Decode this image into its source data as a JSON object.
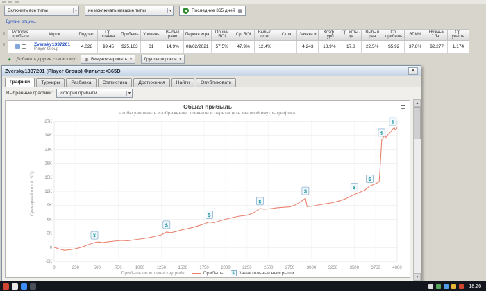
{
  "icons": {
    "dropdown": "▾",
    "back": "◀",
    "calendar": "▦",
    "plus": "+",
    "close": "✕",
    "menu": "≡",
    "up": "▲",
    "down": "▼",
    "grid": "⊞",
    "rows": "≡"
  },
  "toolbar": {
    "include_select": "Включить все типы",
    "exclude_select": "не исключать никакие типы",
    "date_filter": "Последние 365 дней",
    "other_options": "Другие опции..."
  },
  "table": {
    "columns": [
      "История прибыли",
      "Игрок",
      "Подсчет",
      "Ср. ставка",
      "Прибыль",
      "Уровень",
      "Выбыл рано",
      "Первая игра",
      "Общий ROI",
      "Ср. ROI",
      "Выбыл позд",
      "Стра",
      "Заявки и",
      "Коэф. турб",
      "Ср. игры / де",
      "Выбыл ран",
      "Ср. прибыль",
      "ЭПИ%",
      "Нужный бэ",
      "Ср. участн"
    ],
    "row": {
      "player": "Zversky1337201",
      "player_sub": "Player Group",
      "values": [
        "4,028",
        "$9.45",
        "$25,163",
        "81",
        "14.9%",
        "08/02/2021",
        "57.5%",
        "47.9%",
        "12.4%",
        "",
        "4,243",
        "18.9%",
        "17.8",
        "22.5%",
        "$5.92",
        "37.8%",
        "$2,277",
        "1,174"
      ]
    },
    "add_stats": "Добавить другие статистику",
    "visualize_button": "Визуализировать",
    "player_groups_button": "Группы игроков"
  },
  "popup": {
    "title": "Zversky1337201 (Player Group) Фильтр:<365D",
    "tabs": [
      {
        "label": "Графики",
        "active": true
      },
      {
        "label": "Турниры",
        "active": false
      },
      {
        "label": "Разбивка",
        "active": false
      },
      {
        "label": "Статистика",
        "active": false
      },
      {
        "label": "Достижения",
        "active": false
      },
      {
        "label": "Найти",
        "active": false
      },
      {
        "label": "Опубликовать",
        "active": false
      }
    ],
    "selected_graphs_label": "Выбранные графики:",
    "graph_select": "История прибыли"
  },
  "chart_data": {
    "type": "line",
    "title": "Общая прибыль",
    "subtitle": "Чтобы увеличить изображение, кликните и перетащите мышкой внутрь графика.",
    "ylabel": "Суммарный итог (USD)",
    "xlabel": "Прибыль по количеству рейк",
    "legend": [
      "Прибыль",
      "Значительные выигрыши"
    ],
    "xlim": [
      0,
      4000
    ],
    "ylim": [
      -3000,
      27000
    ],
    "x_ticks": [
      0,
      250,
      500,
      750,
      1000,
      1250,
      1500,
      1750,
      2000,
      2250,
      2500,
      2750,
      3000,
      3250,
      3500,
      3750,
      4000
    ],
    "y_ticks": [
      -3000,
      0,
      3000,
      6000,
      9000,
      12000,
      15000,
      18000,
      21000,
      24000,
      27000
    ],
    "y_tick_labels": [
      "-3K",
      "0",
      "3K",
      "6K",
      "9K",
      "12K",
      "15K",
      "18K",
      "21K",
      "24K",
      "27K"
    ],
    "series": [
      {
        "name": "Прибыль",
        "color": "#e8826e",
        "points": [
          [
            0,
            0
          ],
          [
            60,
            -400
          ],
          [
            120,
            -650
          ],
          [
            180,
            -550
          ],
          [
            240,
            -350
          ],
          [
            300,
            -100
          ],
          [
            360,
            300
          ],
          [
            420,
            700
          ],
          [
            470,
            1000
          ],
          [
            520,
            1150
          ],
          [
            560,
            1000
          ],
          [
            620,
            1150
          ],
          [
            700,
            1300
          ],
          [
            780,
            1450
          ],
          [
            860,
            1400
          ],
          [
            940,
            1600
          ],
          [
            1000,
            1750
          ],
          [
            1060,
            1900
          ],
          [
            1120,
            2100
          ],
          [
            1180,
            2350
          ],
          [
            1250,
            2650
          ],
          [
            1310,
            3250
          ],
          [
            1360,
            3100
          ],
          [
            1420,
            3350
          ],
          [
            1480,
            3700
          ],
          [
            1550,
            3950
          ],
          [
            1620,
            4250
          ],
          [
            1700,
            4700
          ],
          [
            1760,
            5050
          ],
          [
            1810,
            5400
          ],
          [
            1860,
            5250
          ],
          [
            1920,
            5550
          ],
          [
            2000,
            6000
          ],
          [
            2080,
            6350
          ],
          [
            2160,
            6650
          ],
          [
            2250,
            6850
          ],
          [
            2320,
            7300
          ],
          [
            2400,
            8300
          ],
          [
            2450,
            8150
          ],
          [
            2520,
            8250
          ],
          [
            2600,
            8450
          ],
          [
            2680,
            8550
          ],
          [
            2750,
            8650
          ],
          [
            2820,
            9100
          ],
          [
            2880,
            9800
          ],
          [
            2930,
            10500
          ],
          [
            2950,
            8700
          ],
          [
            3020,
            8800
          ],
          [
            3100,
            9100
          ],
          [
            3180,
            9350
          ],
          [
            3250,
            9550
          ],
          [
            3330,
            9950
          ],
          [
            3400,
            10400
          ],
          [
            3460,
            10900
          ],
          [
            3500,
            11300
          ],
          [
            3560,
            11750
          ],
          [
            3620,
            12200
          ],
          [
            3680,
            13100
          ],
          [
            3740,
            13550
          ],
          [
            3790,
            14000
          ],
          [
            3805,
            18000
          ],
          [
            3820,
            23000
          ],
          [
            3850,
            23800
          ],
          [
            3870,
            23500
          ],
          [
            3900,
            24300
          ],
          [
            3930,
            24800
          ],
          [
            3950,
            25350
          ],
          [
            3965,
            25600
          ],
          [
            3980,
            25150
          ],
          [
            4000,
            25600
          ]
        ]
      }
    ],
    "markers": {
      "name": "Значительные выигрыши",
      "items": [
        [
          470,
          1000,
          "¥"
        ],
        [
          1310,
          3250,
          "$"
        ],
        [
          1810,
          5400,
          "$"
        ],
        [
          2400,
          8300,
          "$"
        ],
        [
          2930,
          10500,
          "$"
        ],
        [
          3500,
          11300,
          "$"
        ],
        [
          3680,
          13100,
          "$"
        ],
        [
          3820,
          23000,
          "$"
        ],
        [
          3950,
          25350,
          "$"
        ]
      ]
    }
  },
  "taskbar": {
    "time": "18:26"
  }
}
